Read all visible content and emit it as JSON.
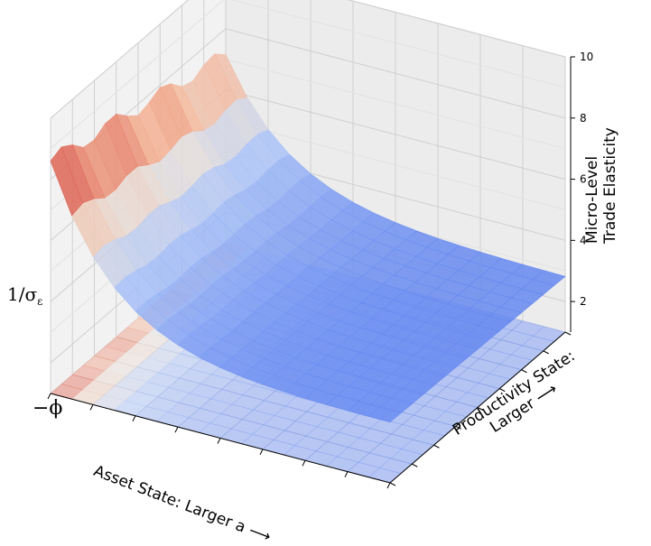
{
  "chart_data": {
    "type": "surface",
    "axes": {
      "x": {
        "label": "Asset State: Larger a ⟶",
        "tick_label": "−ϕ"
      },
      "y": {
        "label_line1": "Productivity State:",
        "label_line2": "Larger ⟶"
      },
      "z": {
        "label_line1": "Micro-Level",
        "label_line2": "Trade Elasticity",
        "ticks": [
          2,
          4,
          6,
          8,
          10
        ],
        "range": [
          1,
          10
        ],
        "reference_label": "1/σε",
        "reference_value": 2.8
      }
    },
    "surface": {
      "asset_steps": 16,
      "productivity_steps": 16,
      "peak_value": 8.6,
      "floor_value": 2.8,
      "colormap": "coolwarm",
      "projected_contour": "floor"
    },
    "grid": true
  }
}
